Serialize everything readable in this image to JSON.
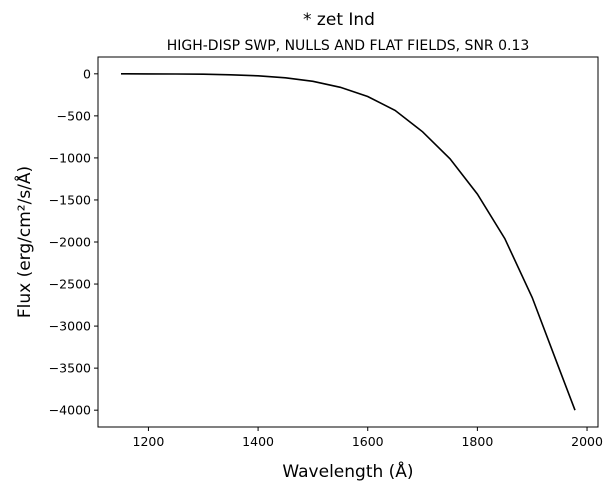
{
  "chart_data": {
    "type": "line",
    "title": "* zet Ind",
    "subtitle": "HIGH-DISP SWP, NULLS AND FLAT FIELDS, SNR 0.13",
    "xlabel": "Wavelength (Å)",
    "ylabel": "Flux (erg/cm²/s/Å)",
    "xlim": [
      1108,
      2020
    ],
    "ylim": [
      -4200,
      200
    ],
    "xticks": [
      1200,
      1400,
      1600,
      1800,
      2000
    ],
    "yticks": [
      0,
      -500,
      -1000,
      -1500,
      -2000,
      -2500,
      -3000,
      -3500,
      -4000
    ],
    "grid": false,
    "line_color": "#000000",
    "series": [
      {
        "x": [
          1150,
          1200,
          1250,
          1300,
          1350,
          1400,
          1450,
          1500,
          1550,
          1600,
          1650,
          1700,
          1750,
          1800,
          1850,
          1900,
          1950,
          1978
        ],
        "y": [
          0,
          -1,
          -2,
          -5,
          -12,
          -24,
          -47,
          -89,
          -160,
          -270,
          -435,
          -690,
          -1010,
          -1430,
          -1960,
          -2660,
          -3520,
          -4000
        ]
      }
    ]
  }
}
